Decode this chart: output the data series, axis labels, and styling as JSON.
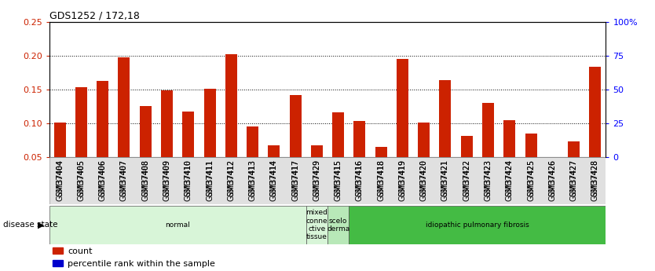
{
  "title": "GDS1252 / 172,18",
  "samples": [
    "GSM37404",
    "GSM37405",
    "GSM37406",
    "GSM37407",
    "GSM37408",
    "GSM37409",
    "GSM37410",
    "GSM37411",
    "GSM37412",
    "GSM37413",
    "GSM37414",
    "GSM37417",
    "GSM37429",
    "GSM37415",
    "GSM37416",
    "GSM37418",
    "GSM37419",
    "GSM37420",
    "GSM37421",
    "GSM37422",
    "GSM37423",
    "GSM37424",
    "GSM37425",
    "GSM37426",
    "GSM37427",
    "GSM37428"
  ],
  "count_values": [
    0.101,
    0.153,
    0.163,
    0.197,
    0.126,
    0.149,
    0.117,
    0.151,
    0.202,
    0.095,
    0.068,
    0.142,
    0.068,
    0.116,
    0.104,
    0.065,
    0.195,
    0.101,
    0.164,
    0.082,
    0.13,
    0.105,
    0.085,
    0.05,
    0.073,
    0.183
  ],
  "percentile_values": [
    0.022,
    0.03,
    0.032,
    0.03,
    0.026,
    0.026,
    0.025,
    0.027,
    0.04,
    0.027,
    0.023,
    0.028,
    0.022,
    0.025,
    0.025,
    0.022,
    0.032,
    0.032,
    0.031,
    0.027,
    0.027,
    0.026,
    0.024,
    0.02,
    0.023,
    0.03
  ],
  "ylim_left": [
    0.05,
    0.25
  ],
  "ylim_right": [
    0,
    100
  ],
  "yticks_left": [
    0.05,
    0.1,
    0.15,
    0.2,
    0.25
  ],
  "yticks_right": [
    0,
    25,
    50,
    75,
    100
  ],
  "ytick_labels_left": [
    "0.05",
    "0.10",
    "0.15",
    "0.20",
    "0.25"
  ],
  "ytick_labels_right": [
    "0",
    "25",
    "50",
    "75",
    "100%"
  ],
  "bar_color_red": "#cc2200",
  "bar_color_blue": "#0000cc",
  "dotted_gridlines": [
    0.1,
    0.15,
    0.2
  ],
  "disease_groups": [
    {
      "label": "normal",
      "start": 0,
      "end": 12,
      "color": "#d8f5d8"
    },
    {
      "label": "mixed\nconne\nctive\ntissue",
      "start": 12,
      "end": 13,
      "color": "#d8f5d8"
    },
    {
      "label": "scelo\nderma",
      "start": 13,
      "end": 14,
      "color": "#b8e8b8"
    },
    {
      "label": "idiopathic pulmonary fibrosis",
      "start": 14,
      "end": 26,
      "color": "#44bb44"
    }
  ],
  "disease_state_label": "disease state",
  "legend_count": "count",
  "legend_pct": "percentile rank within the sample",
  "bar_width": 0.55
}
